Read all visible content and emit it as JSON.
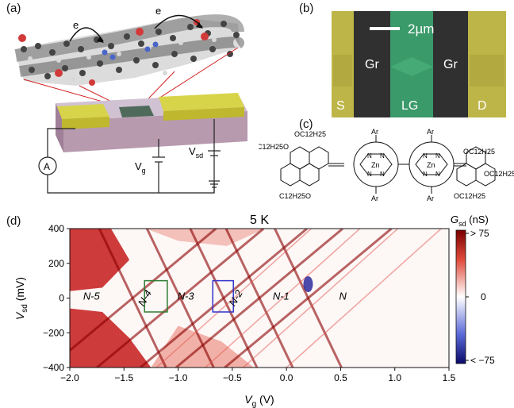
{
  "panels": {
    "a": {
      "label": "(a)",
      "electron_label_1": "e",
      "electron_label_2": "e",
      "ammeter_label": "A",
      "gate_voltage": {
        "main": "V",
        "sub": "g"
      },
      "sd_voltage": {
        "main": "V",
        "sub": "sd"
      }
    },
    "b": {
      "label": "(b)",
      "scale_bar_label": "2µm",
      "region_labels": [
        "S",
        "Gr",
        "LG",
        "Gr",
        "D"
      ],
      "colors": {
        "electrode": "#c8c24a",
        "graphene": "#2a2a2a",
        "local_gate": "#3fa56a"
      }
    },
    "c": {
      "label": "(c)",
      "substituents": {
        "top_left": "OC12H25",
        "left": "C12H25O",
        "bottom_left": "C12H25O",
        "top_right": "OC12H25",
        "right": "OC12H25",
        "bottom_right": "OC12H25"
      },
      "aryl": "Ar",
      "metal": "Zn",
      "nitrogen": "N"
    },
    "d": {
      "label": "(d)",
      "title": "5 K",
      "regions": [
        "N-5",
        "N-4",
        "N-3",
        "N-2",
        "N-1",
        "N"
      ],
      "colorbar": {
        "title_main": "G",
        "title_sub": "sd",
        "title_unit": " (nS)",
        "ticks": [
          "> 75",
          "0",
          "< −75"
        ],
        "colors": {
          "high": "#8b0000",
          "mid": "#ffffff",
          "low": "#00008b"
        }
      },
      "box_colors": {
        "left": "#2e7d32",
        "right": "#3333cc"
      }
    }
  },
  "chart_data": {
    "type": "heatmap",
    "title": "5 K",
    "xlabel": "Vg (V)",
    "ylabel": "Vsd (mV)",
    "xlim": [
      -2.0,
      1.5
    ],
    "ylim": [
      -400,
      400
    ],
    "xticks": [
      "−2.0",
      "−1.5",
      "−1.0",
      "−0.5",
      "0.0",
      "0.5",
      "1.0",
      "1.5"
    ],
    "xtick_values": [
      -2.0,
      -1.5,
      -1.0,
      -0.5,
      0.0,
      0.5,
      1.0,
      1.5
    ],
    "yticks": [
      "400",
      "200",
      "0",
      "−200",
      "−400"
    ],
    "ytick_values": [
      400,
      200,
      0,
      -200,
      -400
    ],
    "color_range": [
      -75,
      75
    ],
    "charge_degeneracy_points_V": [
      -1.42,
      -0.98,
      -0.58,
      -0.25,
      0.2
    ],
    "diamond_regions": [
      {
        "label": "N-5",
        "vg": -1.8
      },
      {
        "label": "N-4",
        "vg": -1.28
      },
      {
        "label": "N-3",
        "vg": -0.93
      },
      {
        "label": "N-2",
        "vg": -0.44
      },
      {
        "label": "N-1",
        "vg": -0.05
      },
      {
        "label": "N",
        "vg": 0.52
      }
    ],
    "highlight_boxes": [
      {
        "vg": [
          -1.31,
          -1.1
        ],
        "vsd": [
          -80,
          100
        ],
        "color": "green"
      },
      {
        "vg": [
          -0.68,
          -0.49
        ],
        "vsd": [
          -80,
          100
        ],
        "color": "blue"
      }
    ]
  }
}
